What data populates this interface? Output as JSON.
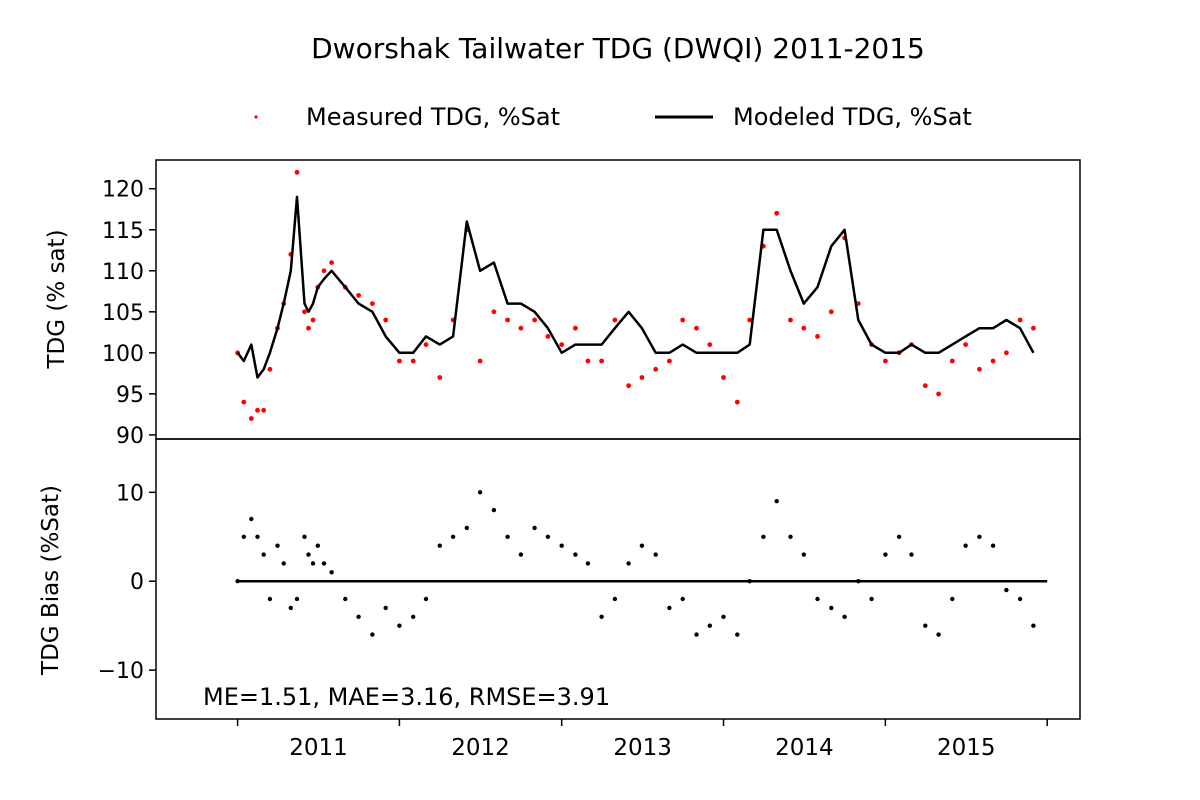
{
  "figure": {
    "title": "Dworshak Tailwater TDG (DWQI) 2011-2015",
    "legend": {
      "placement": "top-center",
      "items": [
        {
          "label": "Measured TDG, %Sat",
          "marker": "dot",
          "color": "#ff0000"
        },
        {
          "label": "Modeled TDG, %Sat",
          "marker": "line",
          "color": "#000000"
        }
      ]
    },
    "stats_annotation": "ME=1.51, MAE=3.16, RMSE=3.91"
  },
  "chart_data": [
    {
      "type": "scatter",
      "panel": "top",
      "title": "Dworshak Tailwater TDG (DWQI) 2011-2015",
      "xlabel": "",
      "ylabel": "TDG (% sat)",
      "xlim": [
        "2010-07-01",
        "2016-03-15"
      ],
      "ylim": [
        89.5,
        123.5
      ],
      "yticks": [
        90,
        95,
        100,
        105,
        110,
        115,
        120
      ],
      "grid": false,
      "series": [
        {
          "name": "Measured TDG, %Sat",
          "style": "red dots",
          "color": "#ff0000",
          "x": [
            "2011-01-01",
            "2011-01-15",
            "2011-02-01",
            "2011-02-15",
            "2011-03-01",
            "2011-03-15",
            "2011-04-01",
            "2011-04-15",
            "2011-05-01",
            "2011-05-15",
            "2011-06-01",
            "2011-06-10",
            "2011-06-20",
            "2011-07-01",
            "2011-07-15",
            "2011-08-01",
            "2011-09-01",
            "2011-10-01",
            "2011-11-01",
            "2011-12-01",
            "2012-01-01",
            "2012-02-01",
            "2012-03-01",
            "2012-04-01",
            "2012-05-01",
            "2012-06-01",
            "2012-07-01",
            "2012-08-01",
            "2012-09-01",
            "2012-10-01",
            "2012-11-01",
            "2012-12-01",
            "2013-01-01",
            "2013-02-01",
            "2013-03-01",
            "2013-04-01",
            "2013-05-01",
            "2013-06-01",
            "2013-07-01",
            "2013-08-01",
            "2013-09-01",
            "2013-10-01",
            "2013-11-01",
            "2013-12-01",
            "2014-01-01",
            "2014-02-01",
            "2014-03-01",
            "2014-04-01",
            "2014-05-01",
            "2014-06-01",
            "2014-07-01",
            "2014-08-01",
            "2014-09-01",
            "2014-10-01",
            "2014-11-01",
            "2014-12-01",
            "2015-01-01",
            "2015-02-01",
            "2015-03-01",
            "2015-04-01",
            "2015-05-01",
            "2015-06-01",
            "2015-07-01",
            "2015-08-01",
            "2015-09-01",
            "2015-10-01",
            "2015-11-01",
            "2015-12-01"
          ],
          "values": [
            100,
            94,
            92,
            93,
            93,
            98,
            103,
            106,
            112,
            122,
            105,
            103,
            104,
            108,
            110,
            111,
            108,
            107,
            106,
            104,
            99,
            99,
            101,
            97,
            104,
            115,
            99,
            105,
            104,
            103,
            104,
            102,
            101,
            103,
            99,
            99,
            104,
            96,
            97,
            98,
            99,
            104,
            103,
            101,
            97,
            94,
            104,
            113,
            117,
            104,
            103,
            102,
            105,
            114,
            106,
            101,
            99,
            100,
            101,
            96,
            95,
            99,
            101,
            98,
            99,
            100,
            104,
            103
          ]
        },
        {
          "name": "Modeled TDG, %Sat",
          "style": "black line",
          "color": "#000000",
          "x": [
            "2011-01-01",
            "2011-01-15",
            "2011-02-01",
            "2011-02-15",
            "2011-03-01",
            "2011-03-15",
            "2011-04-01",
            "2011-04-15",
            "2011-05-01",
            "2011-05-15",
            "2011-06-01",
            "2011-06-10",
            "2011-06-20",
            "2011-07-01",
            "2011-07-15",
            "2011-08-01",
            "2011-09-01",
            "2011-10-01",
            "2011-11-01",
            "2011-12-01",
            "2012-01-01",
            "2012-02-01",
            "2012-03-01",
            "2012-04-01",
            "2012-05-01",
            "2012-06-01",
            "2012-07-01",
            "2012-08-01",
            "2012-09-01",
            "2012-10-01",
            "2012-11-01",
            "2012-12-01",
            "2013-01-01",
            "2013-02-01",
            "2013-03-01",
            "2013-04-01",
            "2013-05-01",
            "2013-06-01",
            "2013-07-01",
            "2013-08-01",
            "2013-09-01",
            "2013-10-01",
            "2013-11-01",
            "2013-12-01",
            "2014-01-01",
            "2014-02-01",
            "2014-03-01",
            "2014-04-01",
            "2014-05-01",
            "2014-06-01",
            "2014-07-01",
            "2014-08-01",
            "2014-09-01",
            "2014-10-01",
            "2014-11-01",
            "2014-12-01",
            "2015-01-01",
            "2015-02-01",
            "2015-03-01",
            "2015-04-01",
            "2015-05-01",
            "2015-06-01",
            "2015-07-01",
            "2015-08-01",
            "2015-09-01",
            "2015-10-01",
            "2015-11-01",
            "2015-12-01"
          ],
          "values": [
            100,
            99,
            101,
            97,
            98,
            100,
            103,
            106,
            110,
            119,
            106,
            105,
            106,
            108,
            109,
            110,
            108,
            106,
            105,
            102,
            100,
            100,
            102,
            101,
            102,
            116,
            110,
            111,
            106,
            106,
            105,
            103,
            100,
            101,
            101,
            101,
            103,
            105,
            103,
            100,
            100,
            101,
            100,
            100,
            100,
            100,
            101,
            115,
            115,
            110,
            106,
            108,
            113,
            115,
            104,
            101,
            100,
            100,
            101,
            100,
            100,
            101,
            102,
            103,
            103,
            104,
            103,
            100
          ]
        }
      ]
    },
    {
      "type": "scatter",
      "panel": "bottom",
      "xlabel": "",
      "ylabel": "TDG Bias (%Sat)",
      "xlim": [
        "2010-07-01",
        "2016-03-15"
      ],
      "ylim": [
        -15.5,
        16
      ],
      "yticks": [
        -10,
        0,
        10
      ],
      "xticklabels": [
        "2011",
        "2012",
        "2013",
        "2014",
        "2015"
      ],
      "grid": false,
      "series": [
        {
          "name": "TDG Bias",
          "style": "black dots",
          "color": "#000000",
          "x": [
            "2011-01-01",
            "2011-01-15",
            "2011-02-01",
            "2011-02-15",
            "2011-03-01",
            "2011-03-15",
            "2011-04-01",
            "2011-04-15",
            "2011-05-01",
            "2011-05-15",
            "2011-06-01",
            "2011-06-10",
            "2011-06-20",
            "2011-07-01",
            "2011-07-15",
            "2011-08-01",
            "2011-09-01",
            "2011-10-01",
            "2011-11-01",
            "2011-12-01",
            "2012-01-01",
            "2012-02-01",
            "2012-03-01",
            "2012-04-01",
            "2012-05-01",
            "2012-06-01",
            "2012-07-01",
            "2012-08-01",
            "2012-09-01",
            "2012-10-01",
            "2012-11-01",
            "2012-12-01",
            "2013-01-01",
            "2013-02-01",
            "2013-03-01",
            "2013-04-01",
            "2013-05-01",
            "2013-06-01",
            "2013-07-01",
            "2013-08-01",
            "2013-09-01",
            "2013-10-01",
            "2013-11-01",
            "2013-12-01",
            "2014-01-01",
            "2014-02-01",
            "2014-03-01",
            "2014-04-01",
            "2014-05-01",
            "2014-06-01",
            "2014-07-01",
            "2014-08-01",
            "2014-09-01",
            "2014-10-01",
            "2014-11-01",
            "2014-12-01",
            "2015-01-01",
            "2015-02-01",
            "2015-03-01",
            "2015-04-01",
            "2015-05-01",
            "2015-06-01",
            "2015-07-01",
            "2015-08-01",
            "2015-09-01",
            "2015-10-01",
            "2015-11-01",
            "2015-12-01"
          ],
          "values": [
            0,
            5,
            7,
            5,
            3,
            -2,
            4,
            2,
            -3,
            -2,
            5,
            3,
            2,
            4,
            2,
            1,
            -2,
            -4,
            -6,
            -3,
            -5,
            -4,
            -2,
            4,
            5,
            6,
            10,
            8,
            5,
            3,
            6,
            5,
            4,
            3,
            2,
            -4,
            -2,
            2,
            4,
            3,
            -3,
            -2,
            -6,
            -5,
            -4,
            -6,
            0,
            5,
            9,
            5,
            3,
            -2,
            -3,
            -4,
            0,
            -2,
            3,
            5,
            3,
            -5,
            -6,
            -2,
            4,
            5,
            4,
            -1,
            -2,
            -5
          ]
        },
        {
          "name": "Zero line",
          "style": "black line",
          "color": "#000000",
          "x": [
            "2011-01-01",
            "2016-01-01"
          ],
          "values": [
            0,
            0
          ]
        }
      ]
    }
  ]
}
